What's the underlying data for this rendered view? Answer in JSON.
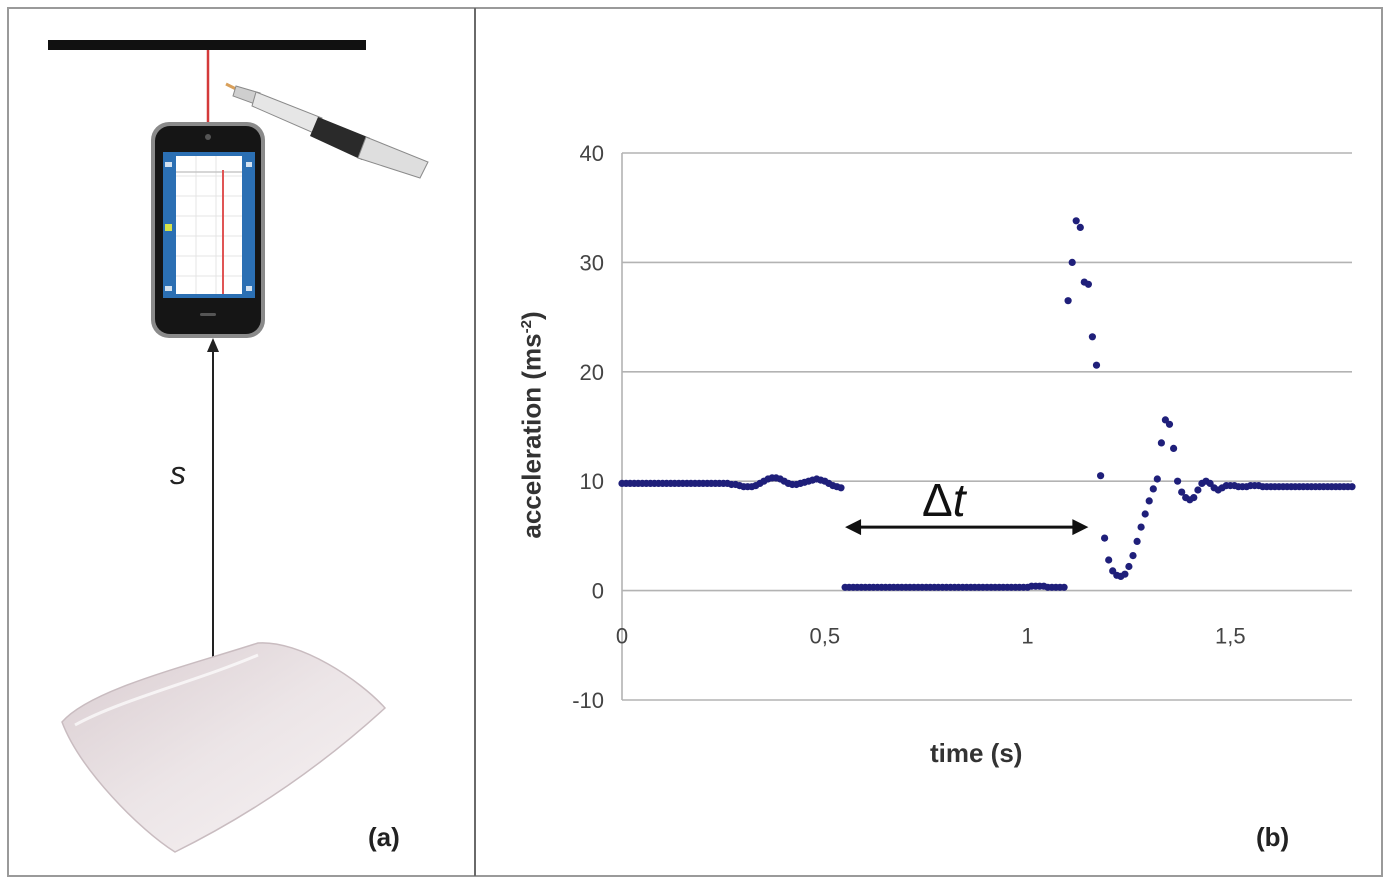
{
  "panel_a": {
    "label": "(a)",
    "distance_label": "s"
  },
  "panel_b": {
    "label": "(b)"
  },
  "chart_data": {
    "type": "scatter",
    "xlabel": "time (s)",
    "ylabel": "acceleration (ms",
    "ylabel_sup": "-2",
    "ylabel_close": ")",
    "xlim": [
      0,
      1.8
    ],
    "ylim": [
      -10,
      40
    ],
    "xticks": [
      0,
      0.5,
      1,
      1.5
    ],
    "xtick_labels": [
      "0",
      "0,5",
      "1",
      "1,5"
    ],
    "yticks": [
      -10,
      0,
      10,
      20,
      30,
      40
    ],
    "ytick_labels": [
      "-10",
      "0",
      "10",
      "20",
      "30",
      "40"
    ],
    "grid": "horizontal",
    "annotation": {
      "delta": "Δ",
      "symbol": "t",
      "x_start": 0.55,
      "x_end": 1.15,
      "y": 5.8
    },
    "marker_color": "#1f1f7a",
    "series": [
      {
        "x": [
          0.0,
          0.01,
          0.02,
          0.03,
          0.04,
          0.05,
          0.06,
          0.07,
          0.08,
          0.09,
          0.1,
          0.11,
          0.12,
          0.13,
          0.14,
          0.15,
          0.16,
          0.17,
          0.18,
          0.19,
          0.2,
          0.21,
          0.22,
          0.23,
          0.24,
          0.25,
          0.26,
          0.27,
          0.28,
          0.29,
          0.3,
          0.31,
          0.32,
          0.33,
          0.34,
          0.35,
          0.36,
          0.37,
          0.38,
          0.39,
          0.4,
          0.41,
          0.42,
          0.43,
          0.44,
          0.45,
          0.46,
          0.47,
          0.48,
          0.49,
          0.5,
          0.51,
          0.52,
          0.53,
          0.54,
          0.55,
          0.56,
          0.57,
          0.58,
          0.59,
          0.6,
          0.61,
          0.62,
          0.63,
          0.64,
          0.65,
          0.66,
          0.67,
          0.68,
          0.69,
          0.7,
          0.71,
          0.72,
          0.73,
          0.74,
          0.75,
          0.76,
          0.77,
          0.78,
          0.79,
          0.8,
          0.81,
          0.82,
          0.83,
          0.84,
          0.85,
          0.86,
          0.87,
          0.88,
          0.89,
          0.9,
          0.91,
          0.92,
          0.93,
          0.94,
          0.95,
          0.96,
          0.97,
          0.98,
          0.99,
          1.0,
          1.01,
          1.02,
          1.03,
          1.04,
          1.05,
          1.06,
          1.07,
          1.08,
          1.09,
          1.1,
          1.11,
          1.12,
          1.13,
          1.14,
          1.15,
          1.16,
          1.17,
          1.18,
          1.19,
          1.2,
          1.21,
          1.22,
          1.23,
          1.24,
          1.25,
          1.26,
          1.27,
          1.28,
          1.29,
          1.3,
          1.31,
          1.32,
          1.33,
          1.34,
          1.35,
          1.36,
          1.37,
          1.38,
          1.39,
          1.4,
          1.41,
          1.42,
          1.43,
          1.44,
          1.45,
          1.46,
          1.47,
          1.48,
          1.49,
          1.5,
          1.51,
          1.52,
          1.53,
          1.54,
          1.55,
          1.56,
          1.57,
          1.58,
          1.59,
          1.6,
          1.61,
          1.62,
          1.63,
          1.64,
          1.65,
          1.66,
          1.67,
          1.68,
          1.69,
          1.7,
          1.71,
          1.72,
          1.73,
          1.74,
          1.75,
          1.76,
          1.77,
          1.78,
          1.79,
          1.8
        ],
        "y": [
          9.8,
          9.8,
          9.8,
          9.8,
          9.8,
          9.8,
          9.8,
          9.8,
          9.8,
          9.8,
          9.8,
          9.8,
          9.8,
          9.8,
          9.8,
          9.8,
          9.8,
          9.8,
          9.8,
          9.8,
          9.8,
          9.8,
          9.8,
          9.8,
          9.8,
          9.8,
          9.8,
          9.7,
          9.7,
          9.6,
          9.5,
          9.5,
          9.5,
          9.6,
          9.8,
          10.0,
          10.2,
          10.3,
          10.3,
          10.2,
          10.0,
          9.8,
          9.7,
          9.7,
          9.8,
          9.9,
          10.0,
          10.1,
          10.2,
          10.1,
          10.0,
          9.8,
          9.6,
          9.5,
          9.4,
          0.3,
          0.3,
          0.3,
          0.3,
          0.3,
          0.3,
          0.3,
          0.3,
          0.3,
          0.3,
          0.3,
          0.3,
          0.3,
          0.3,
          0.3,
          0.3,
          0.3,
          0.3,
          0.3,
          0.3,
          0.3,
          0.3,
          0.3,
          0.3,
          0.3,
          0.3,
          0.3,
          0.3,
          0.3,
          0.3,
          0.3,
          0.3,
          0.3,
          0.3,
          0.3,
          0.3,
          0.3,
          0.3,
          0.3,
          0.3,
          0.3,
          0.3,
          0.3,
          0.3,
          0.3,
          0.3,
          0.4,
          0.4,
          0.4,
          0.4,
          0.3,
          0.3,
          0.3,
          0.3,
          0.3,
          26.5,
          30.0,
          33.8,
          33.2,
          28.2,
          28.0,
          23.2,
          20.6,
          10.5,
          4.8,
          2.8,
          1.8,
          1.4,
          1.3,
          1.5,
          2.2,
          3.2,
          4.5,
          5.8,
          7.0,
          8.2,
          9.3,
          10.2,
          13.5,
          15.6,
          15.2,
          13.0,
          10.0,
          9.0,
          8.5,
          8.3,
          8.5,
          9.2,
          9.8,
          10.0,
          9.8,
          9.4,
          9.2,
          9.4,
          9.6,
          9.6,
          9.6,
          9.5,
          9.5,
          9.5,
          9.6,
          9.6,
          9.6,
          9.5,
          9.5,
          9.5,
          9.5,
          9.5,
          9.5,
          9.5,
          9.5,
          9.5,
          9.5,
          9.5,
          9.5,
          9.5,
          9.5,
          9.5,
          9.5,
          9.5,
          9.5,
          9.5,
          9.5,
          9.5,
          9.5,
          9.5
        ]
      }
    ]
  }
}
